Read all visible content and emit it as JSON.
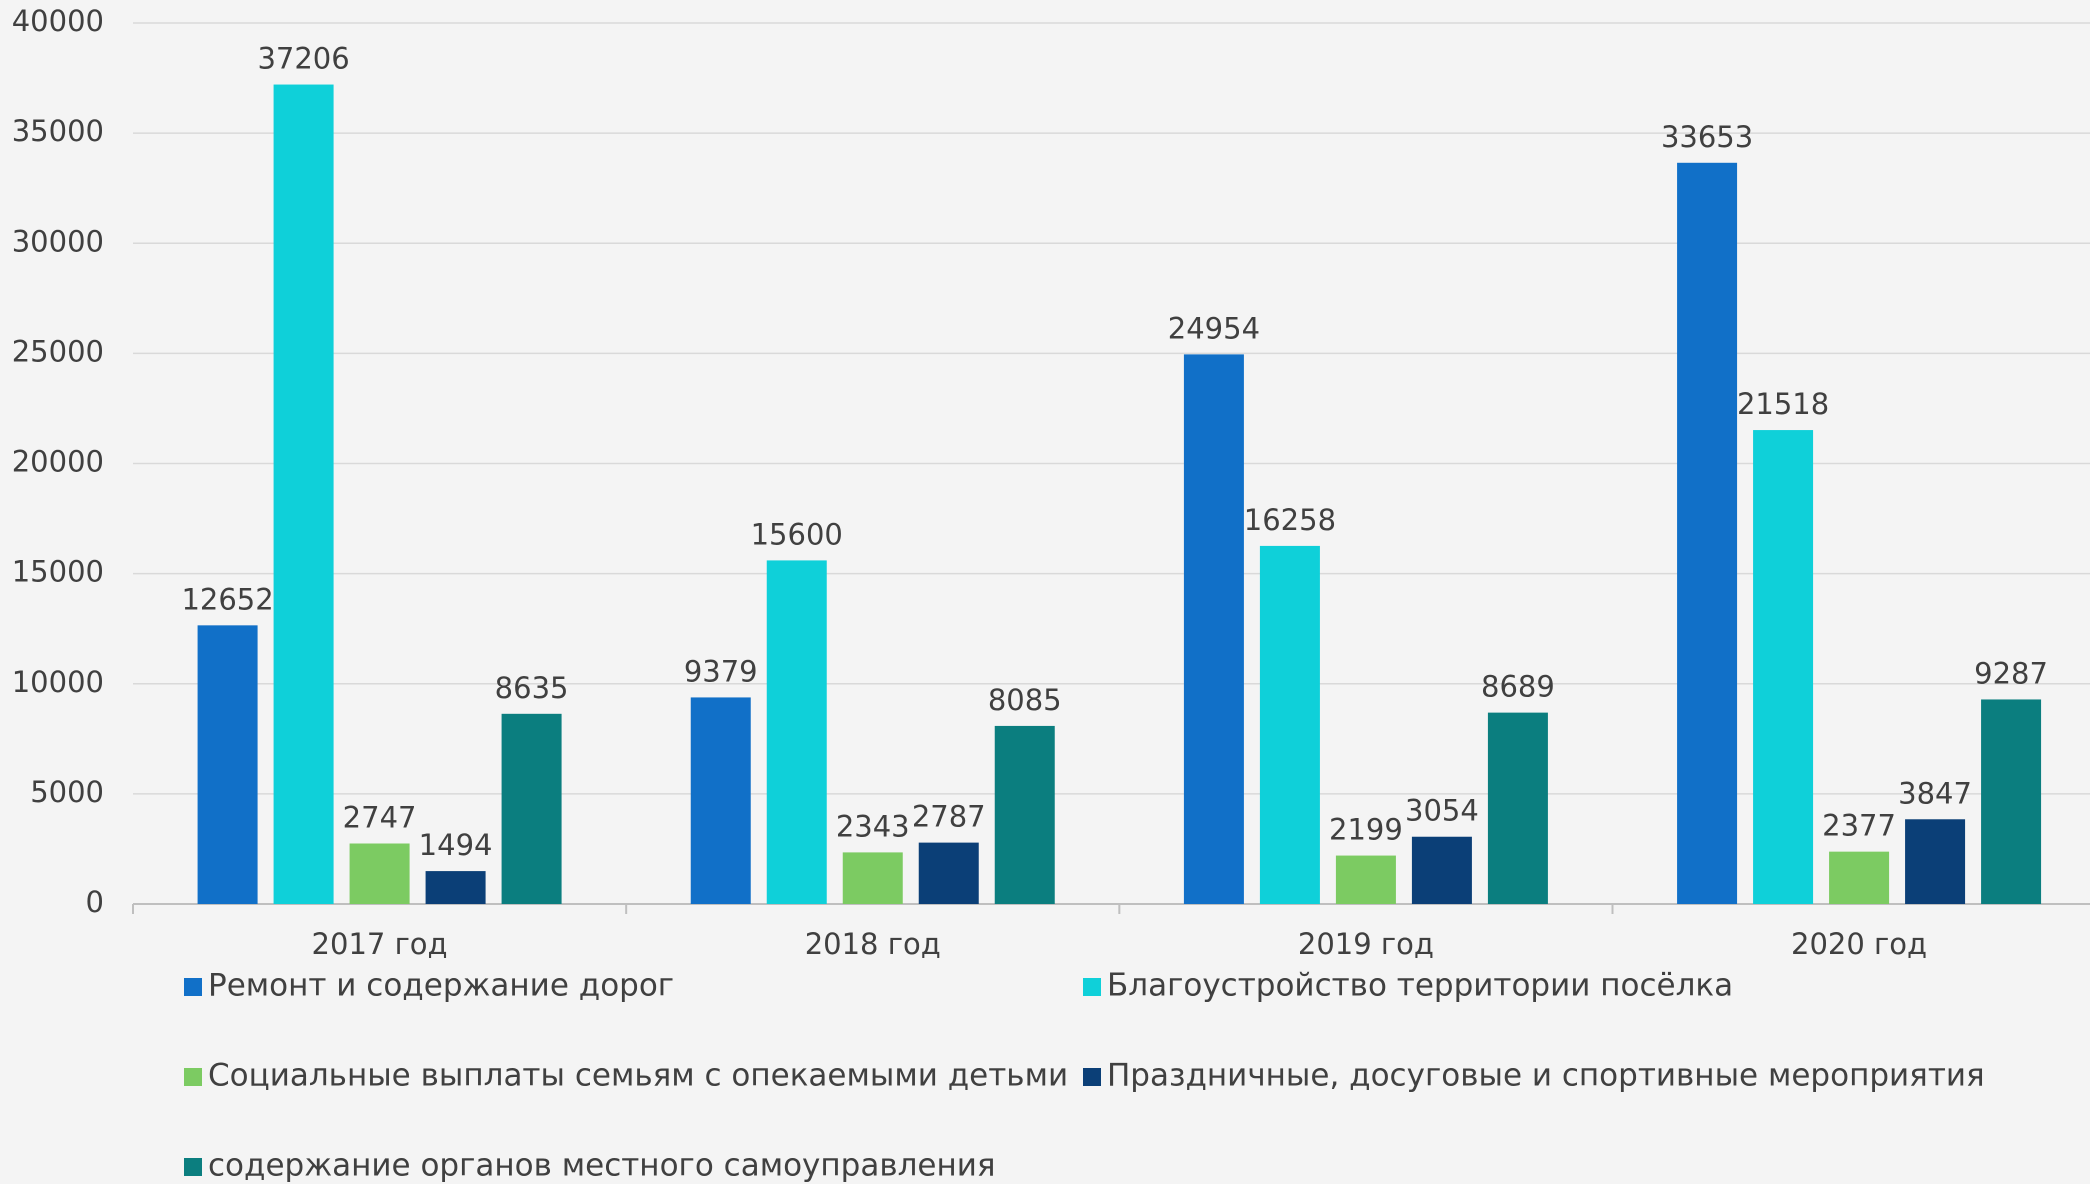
{
  "chart_data": {
    "type": "bar",
    "categories": [
      "2017 год",
      "2018 год",
      "2019 год",
      "2020 год"
    ],
    "series": [
      {
        "name": "Ремонт и содержание дорог",
        "color": "#1170c8",
        "values": [
          12652,
          9379,
          24954,
          33653
        ]
      },
      {
        "name": "Благоустройство территории посёлка",
        "color": "#0fd0d9",
        "values": [
          37206,
          15600,
          16258,
          21518
        ]
      },
      {
        "name": "Социальные выплаты семьям с опекаемыми детьми",
        "color": "#7ccb62",
        "values": [
          2747,
          2343,
          2199,
          2377
        ]
      },
      {
        "name": "Праздничные, досуговые и спортивные мероприятия",
        "color": "#0b3f77",
        "values": [
          1494,
          2787,
          3054,
          3847
        ]
      },
      {
        "name": "содержание органов местного самоуправления",
        "color": "#0b7e7f",
        "values": [
          8635,
          8085,
          8689,
          9287
        ]
      }
    ],
    "ylim": [
      0,
      40000
    ],
    "yticks": [
      0,
      5000,
      10000,
      15000,
      20000,
      25000,
      30000,
      35000,
      40000
    ],
    "grid": true,
    "legend": "bottom"
  }
}
